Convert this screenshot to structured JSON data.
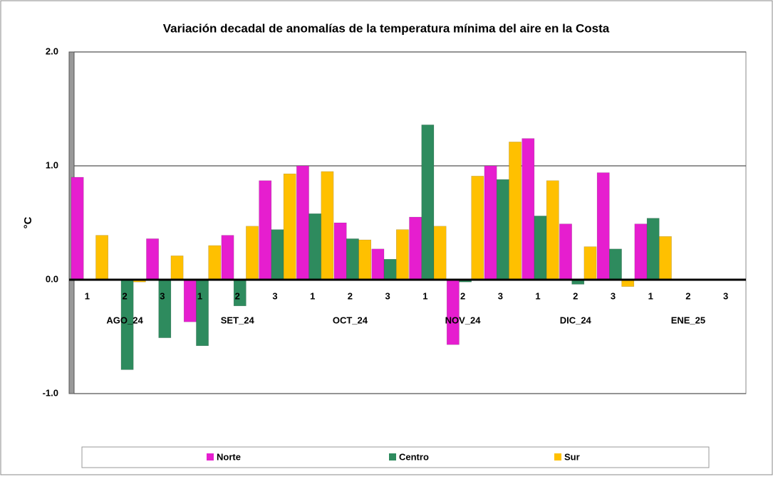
{
  "chart_data": {
    "type": "bar",
    "title": "Variación decadal de anomalías de la temperatura mínima del aire en la Costa",
    "y_label": "°C",
    "categories": [
      "1",
      "2",
      "3",
      "1",
      "2",
      "3",
      "1",
      "2",
      "3",
      "1",
      "2",
      "3",
      "1",
      "2",
      "3",
      "1",
      "2",
      "3"
    ],
    "groups": [
      "AGO_24",
      "SET_24",
      "OCT_24",
      "NOV_24",
      "DIC_24",
      "ENE_25"
    ],
    "series": [
      {
        "name": "Norte",
        "color": "#e61ecf",
        "values": [
          0.9,
          0,
          0.36,
          -0.37,
          0.39,
          0.87,
          1.0,
          0.5,
          0.27,
          0.55,
          -0.57,
          1.0,
          1.24,
          0.49,
          0.94,
          0.49,
          null,
          null
        ]
      },
      {
        "name": "Centro",
        "color": "#2e8b5e",
        "values": [
          0,
          -0.79,
          -0.51,
          -0.58,
          -0.23,
          0.44,
          0.58,
          0.36,
          0.18,
          1.36,
          -0.02,
          0.88,
          0.56,
          -0.04,
          0.27,
          0.54,
          null,
          null
        ]
      },
      {
        "name": "Sur",
        "color": "#ffc000",
        "values": [
          0.39,
          -0.02,
          0.21,
          0.3,
          0.47,
          0.93,
          0.95,
          0.35,
          0.44,
          0.47,
          0.91,
          1.21,
          0.87,
          0.29,
          -0.06,
          0.38,
          null,
          null
        ]
      }
    ],
    "ylim": [
      -1,
      2
    ],
    "yticks": [
      {
        "value": -1,
        "label": "-1.0"
      },
      {
        "value": 0,
        "label": "0.0"
      },
      {
        "value": 1,
        "label": "1.0"
      },
      {
        "value": 2,
        "label": "2.0"
      }
    ],
    "grid": true,
    "legend": "bottom"
  }
}
